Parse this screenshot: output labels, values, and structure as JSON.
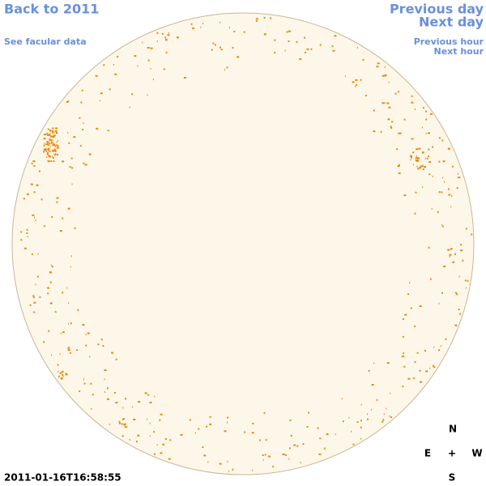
{
  "header": {
    "back_link": "Back to 2011",
    "facular_link": "See facular data",
    "previous_day": "Previous day",
    "next_day": "Next day",
    "previous_hour": "Previous hour",
    "next_hour": "Next hour"
  },
  "timestamp": "2011-01-16T16:58:55",
  "compass": {
    "north": "N",
    "east": "E",
    "center": "+",
    "west": "W",
    "south": "S"
  }
}
